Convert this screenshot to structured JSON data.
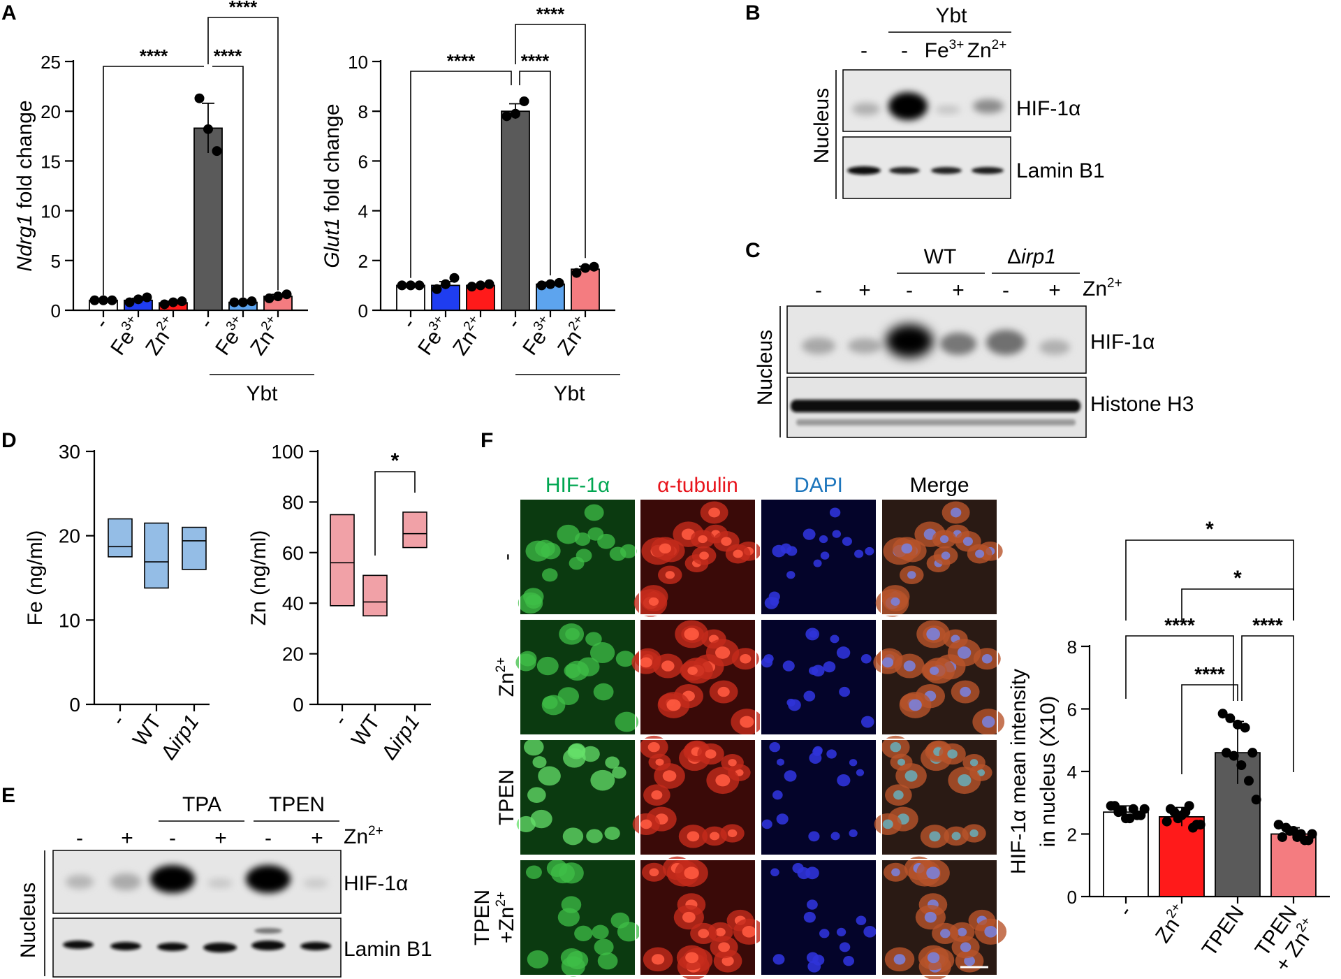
{
  "colors": {
    "black": "#000000",
    "white": "#ffffff",
    "dark_gray": "#5a5a5a",
    "blue": "#1f3df0",
    "red": "#ff1a1a",
    "light_red": "#f47c80",
    "light_blue": "#5da4ee",
    "box_blue": "#94bde6",
    "box_red": "#f1a1a7",
    "green_label": "#00a651",
    "red_label": "#e8141c",
    "blue_label": "#1c75bc"
  },
  "panels": {
    "A": {
      "label": "A",
      "group_label": "Ybt",
      "charts": [
        {
          "type": "bar",
          "ylabel_italic": "Ndrg1",
          "ylabel_rest": " fold change",
          "ylim": [
            0,
            25
          ],
          "yticks": [
            "0",
            "5",
            "10",
            "15",
            "20",
            "25"
          ],
          "tick_values": [
            0,
            5,
            10,
            15,
            20,
            25
          ],
          "categories": [
            {
              "base": "-",
              "sup": ""
            },
            {
              "base": "Fe",
              "sup": "3+"
            },
            {
              "base": "Zn",
              "sup": "2+"
            },
            {
              "base": "-",
              "sup": ""
            },
            {
              "base": "Fe",
              "sup": "3+"
            },
            {
              "base": "Zn",
              "sup": "2+"
            }
          ],
          "values": [
            1.0,
            1.0,
            0.75,
            18.3,
            0.8,
            1.4
          ],
          "errors": [
            0.05,
            0.2,
            0.15,
            2.5,
            0.1,
            0.2
          ],
          "points": [
            [
              1,
              1,
              1
            ],
            [
              0.8,
              1.1,
              1.3
            ],
            [
              0.6,
              0.8,
              0.9
            ],
            [
              21.3,
              18.2,
              16.0
            ],
            [
              0.8,
              0.8,
              0.9
            ],
            [
              1.2,
              1.4,
              1.6
            ]
          ],
          "fill_colors": [
            "#ffffff",
            "#1f3df0",
            "#ff1a1a",
            "#5a5a5a",
            "#5da4ee",
            "#f47c80"
          ],
          "significance": [
            {
              "from": 0,
              "to": 3,
              "label": "****"
            },
            {
              "from": 3,
              "to": 4,
              "label": "****"
            },
            {
              "from": 3,
              "to": 5,
              "label": "****"
            }
          ]
        },
        {
          "type": "bar",
          "ylabel_italic": "Glut1",
          "ylabel_rest": " fold change",
          "ylim": [
            0,
            10
          ],
          "yticks": [
            "0",
            "2",
            "4",
            "6",
            "8",
            "10"
          ],
          "tick_values": [
            0,
            2,
            4,
            6,
            8,
            10
          ],
          "categories": [
            {
              "base": "-",
              "sup": ""
            },
            {
              "base": "Fe",
              "sup": "3+"
            },
            {
              "base": "Zn",
              "sup": "2+"
            },
            {
              "base": "-",
              "sup": ""
            },
            {
              "base": "Fe",
              "sup": "3+"
            },
            {
              "base": "Zn",
              "sup": "2+"
            }
          ],
          "values": [
            1.0,
            1.0,
            1.0,
            8.0,
            1.05,
            1.65
          ],
          "errors": [
            0.03,
            0.15,
            0.05,
            0.3,
            0.08,
            0.12
          ],
          "points": [
            [
              1,
              1,
              1
            ],
            [
              0.85,
              1.05,
              1.3
            ],
            [
              0.95,
              1.0,
              1.05
            ],
            [
              7.8,
              7.9,
              8.4
            ],
            [
              1.0,
              1.05,
              1.1
            ],
            [
              1.5,
              1.7,
              1.75
            ]
          ],
          "fill_colors": [
            "#ffffff",
            "#1f3df0",
            "#ff1a1a",
            "#5a5a5a",
            "#5da4ee",
            "#f47c80"
          ],
          "significance": [
            {
              "from": 0,
              "to": 3,
              "label": "****"
            },
            {
              "from": 3,
              "to": 4,
              "label": "****"
            },
            {
              "from": 3,
              "to": 5,
              "label": "****"
            }
          ]
        }
      ]
    },
    "B": {
      "label": "B",
      "group_label": "Ybt",
      "lane_labels": [
        "-",
        "-",
        "Fe",
        "Zn"
      ],
      "lane_sups": [
        "",
        "",
        "3+",
        "2+"
      ],
      "side_label": "Nucleus",
      "bands": [
        "HIF-1α",
        "Lamin B1"
      ]
    },
    "C": {
      "label": "C",
      "group_labels": [
        "WT",
        "irp1"
      ],
      "delta": "Δ",
      "lane_labels": [
        "-",
        "+",
        "-",
        "+",
        "-",
        "+"
      ],
      "treatment_base": "Zn",
      "treatment_sup": "2+",
      "side_label": "Nucleus",
      "bands": [
        "HIF-1α",
        "Histone H3"
      ]
    },
    "D": {
      "label": "D",
      "charts": [
        {
          "type": "box",
          "ylabel": "Fe (ng/ml)",
          "ylim": [
            0,
            30
          ],
          "yticks": [
            "0",
            "10",
            "20",
            "30"
          ],
          "tick_values": [
            0,
            10,
            20,
            30
          ],
          "categories": [
            "-",
            "WT",
            "irp1"
          ],
          "delta": "Δ",
          "boxes": [
            {
              "min": 17.5,
              "median": 18.7,
              "max": 22.0
            },
            {
              "min": 13.8,
              "median": 16.9,
              "max": 21.5
            },
            {
              "min": 16.0,
              "median": 19.4,
              "max": 21.0
            }
          ],
          "fill": "#94bde6"
        },
        {
          "type": "box",
          "ylabel": "Zn (ng/ml)",
          "ylim": [
            0,
            100
          ],
          "yticks": [
            "0",
            "20",
            "40",
            "60",
            "80",
            "100"
          ],
          "tick_values": [
            0,
            20,
            40,
            60,
            80,
            100
          ],
          "categories": [
            "-",
            "WT",
            "irp1"
          ],
          "delta": "Δ",
          "boxes": [
            {
              "min": 39.0,
              "median": 56.0,
              "max": 75.0
            },
            {
              "min": 35.0,
              "median": 40.5,
              "max": 51.0
            },
            {
              "min": 62.0,
              "median": 67.5,
              "max": 76.0
            }
          ],
          "fill": "#f1a1a7",
          "significance": [
            {
              "from": 1,
              "to": 2,
              "label": "*"
            }
          ]
        }
      ]
    },
    "E": {
      "label": "E",
      "group_labels": [
        "TPA",
        "TPEN"
      ],
      "lane_labels": [
        "-",
        "+",
        "-",
        "+",
        "-",
        "+"
      ],
      "treatment_base": "Zn",
      "treatment_sup": "2+",
      "side_label": "Nucleus",
      "bands": [
        "HIF-1α",
        "Lamin B1"
      ]
    },
    "F": {
      "label": "F",
      "column_labels": [
        "HIF-1α",
        "α-tubulin",
        "DAPI",
        "Merge"
      ],
      "row_labels": [
        {
          "line1": "-",
          "base": "",
          "sup": ""
        },
        {
          "line1": "",
          "base": "Zn",
          "sup": "2+"
        },
        {
          "line1": "TPEN",
          "base": "",
          "sup": ""
        },
        {
          "line1": "TPEN",
          "base": "+Zn",
          "sup": "2+"
        }
      ],
      "chart": {
        "type": "bar",
        "ylabel_line1": "HIF-1α mean intensity",
        "ylabel_line2": "in nucleus (X10)",
        "ylim": [
          0,
          8
        ],
        "yticks": [
          "0",
          "2",
          "4",
          "6",
          "8"
        ],
        "tick_values": [
          0,
          2,
          4,
          6,
          8
        ],
        "categories": [
          {
            "line1": "-",
            "base": "",
            "sup": ""
          },
          {
            "line1": "",
            "base": "Zn",
            "sup": "2+"
          },
          {
            "line1": "TPEN",
            "base": "",
            "sup": ""
          },
          {
            "line1": "TPEN",
            "base": "+ Zn",
            "sup": "2+"
          }
        ],
        "values": [
          2.7,
          2.55,
          4.6,
          2.0
        ],
        "errors": [
          0.2,
          0.3,
          1.0,
          0.2
        ],
        "points": [
          [
            2.9,
            2.7,
            2.5,
            2.8,
            2.6,
            2.9,
            2.75,
            2.5,
            2.6,
            2.8
          ],
          [
            2.4,
            2.7,
            2.6,
            2.9,
            2.3,
            2.8,
            2.5,
            2.7,
            2.2,
            2.3
          ],
          [
            5.85,
            5.7,
            5.5,
            5.4,
            4.6,
            4.6,
            4.5,
            4.2,
            3.7,
            3.1
          ],
          [
            2.3,
            2.2,
            2.1,
            2.0,
            1.8,
            1.9,
            2.1,
            1.9,
            1.8,
            2.0
          ]
        ],
        "fill_colors": [
          "#ffffff",
          "#ff1a1a",
          "#5a5a5a",
          "#f47c80"
        ],
        "significance": [
          {
            "from": 0,
            "to": 3,
            "label": "*"
          },
          {
            "from": 1,
            "to": 3,
            "label": "*"
          },
          {
            "from": 0,
            "to": 2,
            "label": "****"
          },
          {
            "from": 2,
            "to": 3,
            "label": "****"
          },
          {
            "from": 1,
            "to": 2,
            "label": "****"
          }
        ]
      }
    }
  }
}
